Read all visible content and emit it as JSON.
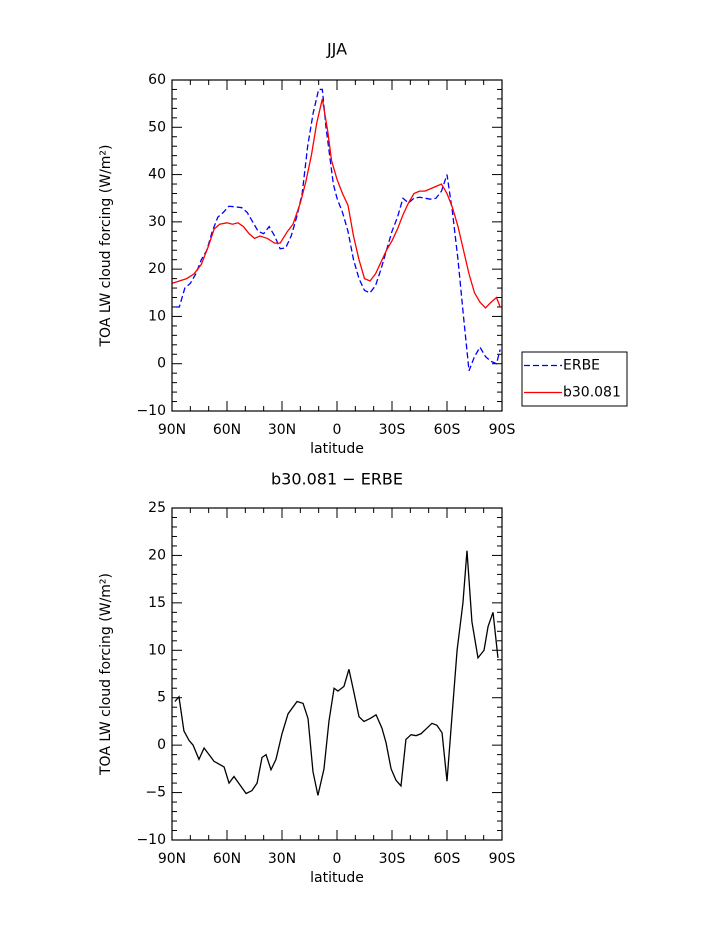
{
  "chart_data": [
    {
      "type": "line",
      "title": "JJA",
      "xlabel": "latitude",
      "ylabel": "TOA LW cloud forcing (W/m²)",
      "xlim": [
        90,
        -90
      ],
      "xticks": [
        {
          "value": 90,
          "label": "90N"
        },
        {
          "value": 60,
          "label": "60N"
        },
        {
          "value": 30,
          "label": "30N"
        },
        0,
        {
          "value": -30,
          "label": "30S"
        },
        {
          "value": -60,
          "label": "60S"
        },
        {
          "value": -90,
          "label": "90S"
        }
      ],
      "ylim": [
        -10,
        60
      ],
      "yticks": [
        {
          "value": -10,
          "label": "−10"
        },
        0,
        10,
        20,
        30,
        40,
        50,
        60
      ],
      "legend": "outside right",
      "series": [
        {
          "name": "ERBE",
          "color": "#0000ff",
          "dashed": true,
          "x": [
            88,
            86,
            83,
            80,
            77,
            74,
            71,
            68,
            65,
            62,
            59,
            56,
            52,
            49,
            46,
            43,
            40,
            37,
            34,
            31,
            28,
            25,
            22,
            19,
            16,
            13,
            10,
            8,
            6,
            4,
            2,
            0,
            -3,
            -6,
            -9,
            -12,
            -15,
            -18,
            -21,
            -24,
            -27,
            -30,
            -33,
            -36,
            -39,
            -42,
            -45,
            -48,
            -51,
            -54,
            -57,
            -60,
            -63,
            -66,
            -69,
            -72,
            -75,
            -78,
            -81,
            -84,
            -87,
            -89
          ],
          "values": [
            12,
            12,
            16,
            17,
            19,
            22,
            24,
            28,
            31,
            32,
            33.3,
            33.2,
            33,
            32,
            30,
            28,
            27.5,
            29,
            27,
            24.3,
            24.5,
            27,
            31,
            36,
            46,
            53,
            58,
            58,
            50,
            44,
            38,
            35,
            32,
            28,
            22,
            18,
            15.5,
            15,
            16.5,
            20,
            24,
            28,
            31,
            35,
            34,
            35,
            35.2,
            35,
            34.8,
            35,
            36.5,
            40,
            32,
            22,
            10,
            -1.5,
            1.5,
            3.5,
            1.5,
            0.5,
            0,
            3
          ]
        },
        {
          "name": "b30.081",
          "color": "#ff0000",
          "dashed": false,
          "x": [
            90,
            86,
            82,
            78,
            74,
            70,
            67,
            64,
            60,
            57,
            54,
            51,
            48,
            45,
            42,
            38,
            34,
            31,
            27,
            24,
            20,
            17,
            14,
            11,
            8,
            5,
            3,
            0,
            -3,
            -6,
            -9,
            -12,
            -15,
            -18,
            -21,
            -24,
            -27,
            -30,
            -33,
            -36,
            -39,
            -42,
            -45,
            -48,
            -51,
            -54,
            -57,
            -60,
            -63,
            -66,
            -69,
            -72,
            -75,
            -78,
            -81,
            -84,
            -87,
            -89
          ],
          "values": [
            17,
            17.5,
            18,
            19,
            21,
            25,
            28.5,
            29.5,
            29.8,
            29.5,
            29.8,
            29,
            27.5,
            26.5,
            27,
            26.5,
            25.5,
            25.5,
            28,
            29.5,
            34,
            38.5,
            44,
            51,
            56,
            49,
            43,
            39,
            36,
            33.5,
            27,
            22,
            18,
            17.5,
            19,
            21.5,
            24,
            26,
            28.5,
            31.5,
            34,
            36,
            36.5,
            36.5,
            37,
            37.5,
            38,
            36,
            33,
            29,
            24,
            19,
            15,
            13,
            11.8,
            13,
            14,
            12
          ]
        }
      ]
    },
    {
      "type": "line",
      "title": "b30.081 − ERBE",
      "xlabel": "latitude",
      "ylabel": "TOA LW cloud forcing (W/m²)",
      "xlim": [
        90,
        -90
      ],
      "xticks": [
        {
          "value": 90,
          "label": "90N"
        },
        {
          "value": 60,
          "label": "60N"
        },
        {
          "value": 30,
          "label": "30N"
        },
        0,
        {
          "value": -30,
          "label": "30S"
        },
        {
          "value": -60,
          "label": "60S"
        },
        {
          "value": -90,
          "label": "90S"
        }
      ],
      "ylim": [
        -10,
        25
      ],
      "yticks": [
        {
          "value": -10,
          "label": "−10"
        },
        {
          "value": -5,
          "label": "−5"
        },
        0,
        5,
        10,
        15,
        20,
        25
      ],
      "series": [
        {
          "color": "#000000",
          "dashed": false,
          "x": [
            88.4,
            86.2,
            83.5,
            80.7,
            78.5,
            75.3,
            72.5,
            69.8,
            67.1,
            61.6,
            58.9,
            56.2,
            52.9,
            49.6,
            46.4,
            43.6,
            40.9,
            38.7,
            36,
            33.3,
            30,
            26.7,
            21.8,
            18.5,
            15.8,
            13.1,
            10.4,
            7.1,
            4.4,
            1.6,
            -0.5,
            -3.8,
            -6.5,
            -9.3,
            -12,
            -14.7,
            -18,
            -21.3,
            -24.5,
            -26.7,
            -29.5,
            -32.2,
            -34.9,
            -37.6,
            -40.4,
            -43.1,
            -45.8,
            -49.1,
            -51.8,
            -54.5,
            -57.3,
            -60,
            -62.7,
            -65.5,
            -68.7,
            -70.9,
            -73.6,
            -76.9,
            -80.2,
            -82.4,
            -85.1,
            -87.8
          ],
          "values": [
            4.6,
            5.1,
            1.5,
            0.5,
            0,
            -1.5,
            -0.3,
            -1,
            -1.7,
            -2.3,
            -4,
            -3.3,
            -4.2,
            -5.1,
            -4.8,
            -4,
            -1.3,
            -1,
            -2.6,
            -1.5,
            1.2,
            3.3,
            4.6,
            4.4,
            2.8,
            -2.8,
            -5.3,
            -2.5,
            2.5,
            6,
            5.7,
            6.2,
            8,
            5.5,
            3,
            2.5,
            2.8,
            3.2,
            1.8,
            0.3,
            -2.5,
            -3.7,
            -4.3,
            0.6,
            1.1,
            1,
            1.2,
            1.8,
            2.3,
            2.1,
            1.3,
            -3.8,
            3,
            10,
            15,
            20.5,
            13,
            9.2,
            10,
            12.5,
            14,
            9.2
          ]
        }
      ]
    }
  ]
}
